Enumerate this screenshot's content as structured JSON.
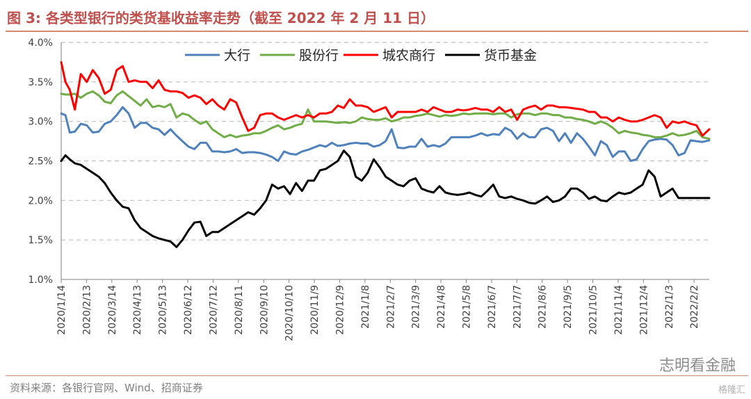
{
  "figure": {
    "title": "图 3: 各类型银行的类货基收益率走势（截至 2022 年 2 月 11 日）",
    "source": "资料来源：各银行官网、Wind、招商证券",
    "watermark": "志明看金融",
    "watermark2": "格隆汇"
  },
  "chart_data": {
    "type": "line",
    "xlabel": "",
    "ylabel": "",
    "ylim": [
      1.0,
      4.0
    ],
    "yticks": [
      "4.0%",
      "3.5%",
      "3.0%",
      "2.5%",
      "2.0%",
      "1.5%",
      "1.0%"
    ],
    "ytick_values": [
      4.0,
      3.5,
      3.0,
      2.5,
      2.0,
      1.5,
      1.0
    ],
    "x_range": [
      "2020-01-14",
      "2022-02-11"
    ],
    "xtick_labels": [
      "2020/1/14",
      "2020/2/13",
      "2020/3/14",
      "2020/4/13",
      "2020/5/13",
      "2020/6/12",
      "2020/7/12",
      "2020/8/11",
      "2020/9/10",
      "2020/10/10",
      "2020/11/9",
      "2020/12/9",
      "2021/1/8",
      "2021/2/7",
      "2021/3/9",
      "2021/4/8",
      "2021/5/8",
      "2021/6/7",
      "2021/7/7",
      "2021/8/6",
      "2021/9/5",
      "2021/10/5",
      "2021/11/4",
      "2021/12/4",
      "2022/1/3",
      "2022/2/2"
    ],
    "grid": "horizontal-dashed",
    "legend_position": "top",
    "series": [
      {
        "name": "大行",
        "color": "#4f81bd",
        "x": [
          "2020-01-14",
          "2020-01-19",
          "2020-01-24",
          "2020-01-30",
          "2020-02-06",
          "2020-02-13",
          "2020-02-20",
          "2020-02-27",
          "2020-03-05",
          "2020-03-12",
          "2020-03-19",
          "2020-03-26",
          "2020-04-02",
          "2020-04-09",
          "2020-04-16",
          "2020-04-23",
          "2020-04-30",
          "2020-05-07",
          "2020-05-14",
          "2020-05-21",
          "2020-05-28",
          "2020-06-04",
          "2020-06-11",
          "2020-06-18",
          "2020-06-25",
          "2020-07-02",
          "2020-07-09",
          "2020-07-16",
          "2020-07-23",
          "2020-07-30",
          "2020-08-06",
          "2020-08-13",
          "2020-08-20",
          "2020-08-27",
          "2020-09-03",
          "2020-09-10",
          "2020-09-17",
          "2020-09-24",
          "2020-10-01",
          "2020-10-08",
          "2020-10-15",
          "2020-10-22",
          "2020-10-29",
          "2020-11-05",
          "2020-11-12",
          "2020-11-19",
          "2020-11-26",
          "2020-12-03",
          "2020-12-10",
          "2020-12-17",
          "2020-12-24",
          "2020-12-31",
          "2021-01-07",
          "2021-01-14",
          "2021-01-21",
          "2021-01-28",
          "2021-02-04",
          "2021-02-11",
          "2021-02-18",
          "2021-02-25",
          "2021-03-04",
          "2021-03-11",
          "2021-03-18",
          "2021-03-25",
          "2021-04-01",
          "2021-04-08",
          "2021-04-15",
          "2021-04-22",
          "2021-04-29",
          "2021-05-06",
          "2021-05-13",
          "2021-05-20",
          "2021-05-27",
          "2021-06-03",
          "2021-06-10",
          "2021-06-17",
          "2021-06-24",
          "2021-07-01",
          "2021-07-08",
          "2021-07-15",
          "2021-07-22",
          "2021-07-29",
          "2021-08-05",
          "2021-08-12",
          "2021-08-19",
          "2021-08-26",
          "2021-09-02",
          "2021-09-09",
          "2021-09-16",
          "2021-09-23",
          "2021-09-30",
          "2021-10-07",
          "2021-10-14",
          "2021-10-21",
          "2021-10-28",
          "2021-11-04",
          "2021-11-11",
          "2021-11-18",
          "2021-11-25",
          "2021-12-02",
          "2021-12-09",
          "2021-12-16",
          "2021-12-23",
          "2021-12-30",
          "2022-01-06",
          "2022-01-13",
          "2022-01-20",
          "2022-01-27",
          "2022-02-03",
          "2022-02-11"
        ],
        "y": [
          3.1,
          3.08,
          2.86,
          2.87,
          2.97,
          2.95,
          2.86,
          2.87,
          2.97,
          3.0,
          3.08,
          3.18,
          3.1,
          2.92,
          2.98,
          2.98,
          2.92,
          2.9,
          2.83,
          2.9,
          2.82,
          2.75,
          2.68,
          2.65,
          2.73,
          2.73,
          2.62,
          2.62,
          2.61,
          2.62,
          2.65,
          2.6,
          2.61,
          2.61,
          2.6,
          2.58,
          2.55,
          2.5,
          2.62,
          2.59,
          2.58,
          2.62,
          2.64,
          2.67,
          2.7,
          2.68,
          2.73,
          2.69,
          2.7,
          2.72,
          2.73,
          2.72,
          2.72,
          2.68,
          2.7,
          2.75,
          2.9,
          2.67,
          2.66,
          2.68,
          2.68,
          2.78,
          2.68,
          2.7,
          2.68,
          2.72,
          2.8,
          2.8,
          2.8,
          2.8,
          2.82,
          2.85,
          2.82,
          2.84,
          2.83,
          2.92,
          2.88,
          2.78,
          2.85,
          2.8,
          2.8,
          2.9,
          2.92,
          2.88,
          2.75,
          2.85,
          2.73,
          2.85,
          2.78,
          2.68,
          2.57,
          2.75,
          2.7,
          2.55,
          2.62,
          2.62,
          2.5,
          2.52,
          2.65,
          2.75,
          2.77,
          2.78,
          2.77,
          2.7,
          2.57,
          2.6,
          2.76,
          2.75,
          2.74,
          2.76
        ]
      },
      {
        "name": "股份行",
        "color": "#70ad47",
        "x": [
          "2020-01-14",
          "2020-01-19",
          "2020-01-24",
          "2020-01-30",
          "2020-02-06",
          "2020-02-13",
          "2020-02-20",
          "2020-02-27",
          "2020-03-05",
          "2020-03-12",
          "2020-03-19",
          "2020-03-26",
          "2020-04-02",
          "2020-04-09",
          "2020-04-16",
          "2020-04-23",
          "2020-04-30",
          "2020-05-07",
          "2020-05-14",
          "2020-05-21",
          "2020-05-28",
          "2020-06-04",
          "2020-06-11",
          "2020-06-18",
          "2020-06-25",
          "2020-07-02",
          "2020-07-09",
          "2020-07-16",
          "2020-07-23",
          "2020-07-30",
          "2020-08-06",
          "2020-08-13",
          "2020-08-20",
          "2020-08-27",
          "2020-09-03",
          "2020-09-10",
          "2020-09-17",
          "2020-09-24",
          "2020-10-01",
          "2020-10-08",
          "2020-10-15",
          "2020-10-22",
          "2020-10-29",
          "2020-11-05",
          "2020-11-12",
          "2020-11-19",
          "2020-11-26",
          "2020-12-03",
          "2020-12-10",
          "2020-12-17",
          "2020-12-24",
          "2020-12-31",
          "2021-01-07",
          "2021-01-14",
          "2021-01-21",
          "2021-01-28",
          "2021-02-04",
          "2021-02-11",
          "2021-02-18",
          "2021-02-25",
          "2021-03-04",
          "2021-03-11",
          "2021-03-18",
          "2021-03-25",
          "2021-04-01",
          "2021-04-08",
          "2021-04-15",
          "2021-04-22",
          "2021-04-29",
          "2021-05-06",
          "2021-05-13",
          "2021-05-20",
          "2021-05-27",
          "2021-06-03",
          "2021-06-10",
          "2021-06-17",
          "2021-06-24",
          "2021-07-01",
          "2021-07-08",
          "2021-07-15",
          "2021-07-22",
          "2021-07-29",
          "2021-08-05",
          "2021-08-12",
          "2021-08-19",
          "2021-08-26",
          "2021-09-02",
          "2021-09-09",
          "2021-09-16",
          "2021-09-23",
          "2021-09-30",
          "2021-10-07",
          "2021-10-14",
          "2021-10-21",
          "2021-10-28",
          "2021-11-04",
          "2021-11-11",
          "2021-11-18",
          "2021-11-25",
          "2021-12-02",
          "2021-12-09",
          "2021-12-16",
          "2021-12-23",
          "2021-12-30",
          "2022-01-06",
          "2022-01-13",
          "2022-01-20",
          "2022-01-27",
          "2022-02-03",
          "2022-02-11"
        ],
        "y": [
          3.35,
          3.34,
          3.34,
          3.35,
          3.3,
          3.35,
          3.38,
          3.33,
          3.25,
          3.23,
          3.33,
          3.38,
          3.32,
          3.26,
          3.2,
          3.28,
          3.18,
          3.2,
          3.18,
          3.22,
          3.05,
          3.1,
          3.08,
          3.02,
          2.97,
          3.0,
          2.9,
          2.85,
          2.8,
          2.83,
          2.8,
          2.82,
          2.83,
          2.85,
          2.85,
          2.88,
          2.92,
          2.95,
          2.9,
          2.92,
          2.95,
          2.97,
          3.15,
          3.0,
          3.0,
          3.0,
          2.99,
          2.98,
          2.99,
          2.98,
          3.0,
          3.05,
          3.03,
          3.02,
          3.02,
          3.04,
          3.0,
          3.02,
          3.05,
          3.05,
          3.07,
          3.08,
          3.1,
          3.08,
          3.06,
          3.08,
          3.07,
          3.08,
          3.1,
          3.09,
          3.1,
          3.1,
          3.1,
          3.09,
          3.1,
          3.1,
          3.05,
          3.09,
          3.1,
          3.1,
          3.08,
          3.1,
          3.1,
          3.08,
          3.08,
          3.05,
          3.05,
          3.03,
          3.02,
          3.0,
          2.97,
          3.0,
          2.97,
          2.92,
          2.85,
          2.88,
          2.86,
          2.85,
          2.83,
          2.82,
          2.8,
          2.8,
          2.82,
          2.85,
          2.82,
          2.83,
          2.85,
          2.88,
          2.8,
          2.78
        ]
      },
      {
        "name": "城农商行",
        "color": "#ff0000",
        "x": [
          "2020-01-14",
          "2020-01-19",
          "2020-01-24",
          "2020-01-30",
          "2020-02-06",
          "2020-02-13",
          "2020-02-20",
          "2020-02-27",
          "2020-03-05",
          "2020-03-12",
          "2020-03-19",
          "2020-03-26",
          "2020-04-02",
          "2020-04-09",
          "2020-04-16",
          "2020-04-23",
          "2020-04-30",
          "2020-05-07",
          "2020-05-14",
          "2020-05-21",
          "2020-05-28",
          "2020-06-04",
          "2020-06-11",
          "2020-06-18",
          "2020-06-25",
          "2020-07-02",
          "2020-07-09",
          "2020-07-16",
          "2020-07-23",
          "2020-07-30",
          "2020-08-06",
          "2020-08-13",
          "2020-08-20",
          "2020-08-27",
          "2020-09-03",
          "2020-09-10",
          "2020-09-17",
          "2020-09-24",
          "2020-10-01",
          "2020-10-08",
          "2020-10-15",
          "2020-10-22",
          "2020-10-29",
          "2020-11-05",
          "2020-11-12",
          "2020-11-19",
          "2020-11-26",
          "2020-12-03",
          "2020-12-10",
          "2020-12-17",
          "2020-12-24",
          "2020-12-31",
          "2021-01-07",
          "2021-01-14",
          "2021-01-21",
          "2021-01-28",
          "2021-02-04",
          "2021-02-11",
          "2021-02-18",
          "2021-02-25",
          "2021-03-04",
          "2021-03-11",
          "2021-03-18",
          "2021-03-25",
          "2021-04-01",
          "2021-04-08",
          "2021-04-15",
          "2021-04-22",
          "2021-04-29",
          "2021-05-06",
          "2021-05-13",
          "2021-05-20",
          "2021-05-27",
          "2021-06-03",
          "2021-06-10",
          "2021-06-17",
          "2021-06-24",
          "2021-07-01",
          "2021-07-08",
          "2021-07-15",
          "2021-07-22",
          "2021-07-29",
          "2021-08-05",
          "2021-08-12",
          "2021-08-19",
          "2021-08-26",
          "2021-09-02",
          "2021-09-09",
          "2021-09-16",
          "2021-09-23",
          "2021-09-30",
          "2021-10-07",
          "2021-10-14",
          "2021-10-21",
          "2021-10-28",
          "2021-11-04",
          "2021-11-11",
          "2021-11-18",
          "2021-11-25",
          "2021-12-02",
          "2021-12-09",
          "2021-12-16",
          "2021-12-23",
          "2021-12-30",
          "2022-01-06",
          "2022-01-13",
          "2022-01-20",
          "2022-01-27",
          "2022-02-03",
          "2022-02-11"
        ],
        "y": [
          3.75,
          3.5,
          3.4,
          3.15,
          3.6,
          3.5,
          3.65,
          3.55,
          3.35,
          3.4,
          3.65,
          3.7,
          3.5,
          3.52,
          3.5,
          3.5,
          3.42,
          3.52,
          3.4,
          3.38,
          3.38,
          3.36,
          3.3,
          3.33,
          3.3,
          3.22,
          3.28,
          3.2,
          3.15,
          3.28,
          3.24,
          3.05,
          2.88,
          2.92,
          3.08,
          3.1,
          3.1,
          3.05,
          3.02,
          3.05,
          3.08,
          3.05,
          3.08,
          3.05,
          3.1,
          3.1,
          3.12,
          3.2,
          3.17,
          3.28,
          3.2,
          3.2,
          3.18,
          3.12,
          3.15,
          3.18,
          3.05,
          3.12,
          3.12,
          3.12,
          3.12,
          3.15,
          3.12,
          3.18,
          3.15,
          3.12,
          3.12,
          3.15,
          3.14,
          3.15,
          3.17,
          3.15,
          3.15,
          3.12,
          3.18,
          3.12,
          3.15,
          3.02,
          3.15,
          3.18,
          3.2,
          3.15,
          3.2,
          3.2,
          3.18,
          3.18,
          3.17,
          3.16,
          3.15,
          3.12,
          3.12,
          3.05,
          3.05,
          3.0,
          3.05,
          3.02,
          3.0,
          3.0,
          3.02,
          3.05,
          3.08,
          3.05,
          2.92,
          3.0,
          2.98,
          3.0,
          2.97,
          2.95,
          2.82,
          2.9
        ]
      },
      {
        "name": "货币基金",
        "color": "#000000",
        "x": [
          "2020-01-14",
          "2020-01-19",
          "2020-01-24",
          "2020-01-30",
          "2020-02-06",
          "2020-02-13",
          "2020-02-20",
          "2020-02-27",
          "2020-03-05",
          "2020-03-12",
          "2020-03-19",
          "2020-03-26",
          "2020-04-02",
          "2020-04-09",
          "2020-04-16",
          "2020-04-23",
          "2020-04-30",
          "2020-05-07",
          "2020-05-14",
          "2020-05-21",
          "2020-05-28",
          "2020-06-04",
          "2020-06-11",
          "2020-06-18",
          "2020-06-25",
          "2020-07-02",
          "2020-07-09",
          "2020-07-16",
          "2020-07-23",
          "2020-07-30",
          "2020-08-06",
          "2020-08-13",
          "2020-08-20",
          "2020-08-27",
          "2020-09-03",
          "2020-09-10",
          "2020-09-17",
          "2020-09-24",
          "2020-10-01",
          "2020-10-08",
          "2020-10-15",
          "2020-10-22",
          "2020-10-29",
          "2020-11-05",
          "2020-11-12",
          "2020-11-19",
          "2020-11-26",
          "2020-12-03",
          "2020-12-10",
          "2020-12-17",
          "2020-12-24",
          "2020-12-31",
          "2021-01-07",
          "2021-01-14",
          "2021-01-21",
          "2021-01-28",
          "2021-02-04",
          "2021-02-11",
          "2021-02-18",
          "2021-02-25",
          "2021-03-04",
          "2021-03-11",
          "2021-03-18",
          "2021-03-25",
          "2021-04-01",
          "2021-04-08",
          "2021-04-15",
          "2021-04-22",
          "2021-04-29",
          "2021-05-06",
          "2021-05-13",
          "2021-05-20",
          "2021-05-27",
          "2021-06-03",
          "2021-06-10",
          "2021-06-17",
          "2021-06-24",
          "2021-07-01",
          "2021-07-08",
          "2021-07-15",
          "2021-07-22",
          "2021-07-29",
          "2021-08-05",
          "2021-08-12",
          "2021-08-19",
          "2021-08-26",
          "2021-09-02",
          "2021-09-09",
          "2021-09-16",
          "2021-09-23",
          "2021-09-30",
          "2021-10-07",
          "2021-10-14",
          "2021-10-21",
          "2021-10-28",
          "2021-11-04",
          "2021-11-11",
          "2021-11-18",
          "2021-11-25",
          "2021-12-02",
          "2021-12-09",
          "2021-12-16",
          "2021-12-23",
          "2021-12-30",
          "2022-01-06",
          "2022-01-13",
          "2022-01-20",
          "2022-01-27",
          "2022-02-03",
          "2022-02-11"
        ],
        "y": [
          2.5,
          2.57,
          2.52,
          2.47,
          2.45,
          2.4,
          2.35,
          2.3,
          2.22,
          2.1,
          2.0,
          1.92,
          1.9,
          1.75,
          1.65,
          1.6,
          1.55,
          1.52,
          1.5,
          1.48,
          1.41,
          1.5,
          1.62,
          1.72,
          1.73,
          1.55,
          1.6,
          1.6,
          1.65,
          1.7,
          1.75,
          1.8,
          1.85,
          1.82,
          1.9,
          2.0,
          2.2,
          2.15,
          2.18,
          2.08,
          2.22,
          2.12,
          2.25,
          2.25,
          2.38,
          2.4,
          2.45,
          2.5,
          2.63,
          2.55,
          2.3,
          2.25,
          2.35,
          2.52,
          2.42,
          2.3,
          2.25,
          2.2,
          2.18,
          2.25,
          2.28,
          2.15,
          2.12,
          2.1,
          2.18,
          2.1,
          2.08,
          2.07,
          2.08,
          2.1,
          2.07,
          2.05,
          2.12,
          2.2,
          2.05,
          2.03,
          2.05,
          2.02,
          2.0,
          1.97,
          1.96,
          2.0,
          2.05,
          1.98,
          2.0,
          2.05,
          2.15,
          2.15,
          2.1,
          2.02,
          2.05,
          2.0,
          1.99,
          2.05,
          2.1,
          2.08,
          2.1,
          2.15,
          2.2,
          2.38,
          2.3,
          2.05,
          2.1,
          2.15,
          2.03,
          2.03,
          2.03,
          2.03,
          2.03,
          2.03
        ]
      }
    ]
  }
}
